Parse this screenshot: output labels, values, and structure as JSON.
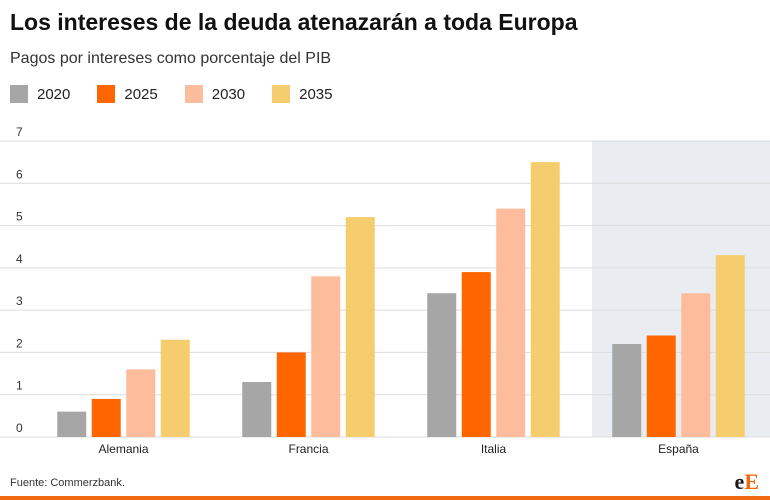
{
  "title": "Los intereses de la deuda atenazarán a toda Europa",
  "subtitle": "Pagos por intereses como porcentaje del PIB",
  "source": "Fuente: Commerzbank.",
  "logo": {
    "lower": "e",
    "upper": "E"
  },
  "colors": {
    "s2020": "#a6a6a6",
    "s2025": "#ff6600",
    "s2030": "#fdbc9c",
    "s2035": "#f5cd6e",
    "highlight": "#e9edf1",
    "grid": "#dcdcdc",
    "accent": "#f26a10"
  },
  "chart_data": {
    "type": "bar",
    "title": "Los intereses de la deuda atenazarán a toda Europa",
    "subtitle": "Pagos por intereses como porcentaje del PIB",
    "categories": [
      "Alemania",
      "Francia",
      "Italia",
      "España"
    ],
    "series": [
      {
        "name": "2020",
        "values": [
          0.6,
          1.3,
          3.4,
          2.2
        ]
      },
      {
        "name": "2025",
        "values": [
          0.9,
          2.0,
          3.9,
          2.4
        ]
      },
      {
        "name": "2030",
        "values": [
          1.6,
          3.8,
          5.4,
          3.4
        ]
      },
      {
        "name": "2035",
        "values": [
          2.3,
          5.2,
          6.5,
          4.3
        ]
      }
    ],
    "yticks": [
      0,
      1,
      2,
      3,
      4,
      5,
      6,
      7
    ],
    "ylim": [
      0,
      7
    ],
    "xlabel": "",
    "ylabel": "",
    "legend": "top-left",
    "grid": true,
    "highlighted_category": "España"
  }
}
